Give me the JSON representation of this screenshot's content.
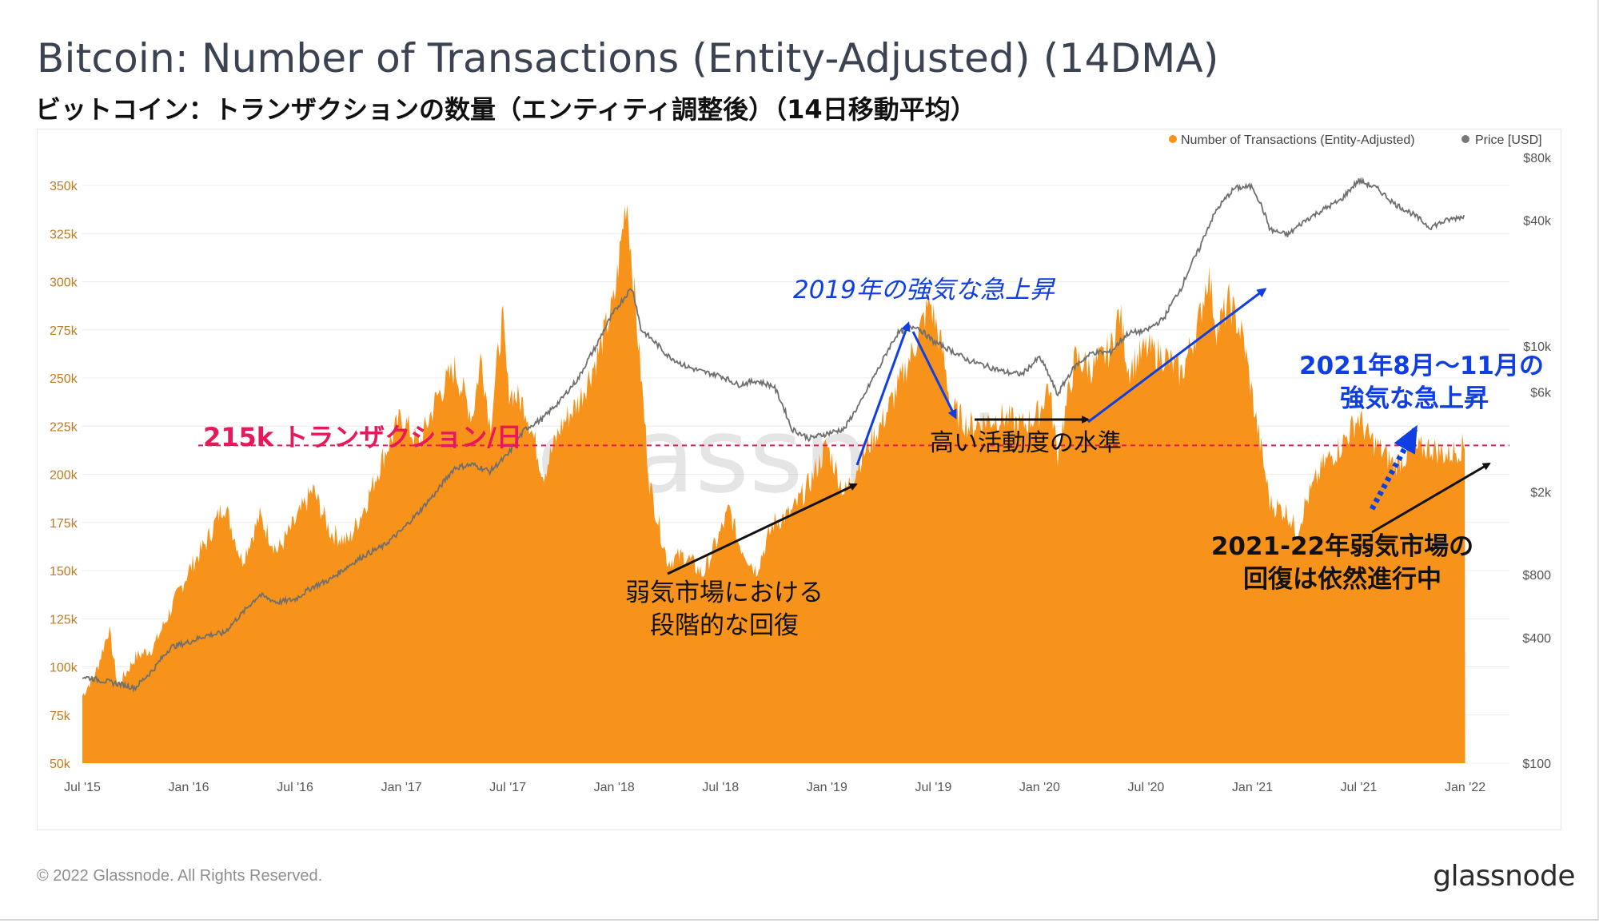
{
  "header": {
    "title": "Bitcoin: Number of Transactions (Entity-Adjusted) (14DMA)",
    "subtitle": "ビットコイン：トランザクションの数量（エンティティ調整後）（14日移動平均）"
  },
  "footer": {
    "copyright": "© 2022 Glassnode. All Rights Reserved.",
    "logo": "glassnode"
  },
  "watermark": "glassnode",
  "colors": {
    "transactions": "#f7931a",
    "price": "#777777",
    "threshold": "#e8185a",
    "blue_annotation": "#0f3fe3",
    "black_annotation": "#111111"
  },
  "chart_data": {
    "type": "area",
    "title": "Bitcoin: Number of Transactions (Entity-Adjusted) (14DMA)",
    "x_ticks": [
      "Jul '15",
      "Jan '16",
      "Jul '16",
      "Jan '17",
      "Jul '17",
      "Jan '18",
      "Jul '18",
      "Jan '19",
      "Jul '19",
      "Jan '20",
      "Jul '20",
      "Jan '21",
      "Jul '21",
      "Jan '22"
    ],
    "x_range_months": [
      0,
      80.5
    ],
    "y_left": {
      "label": "",
      "ticks": [
        "50k",
        "75k",
        "100k",
        "125k",
        "150k",
        "175k",
        "200k",
        "225k",
        "250k",
        "275k",
        "300k",
        "325k",
        "350k"
      ],
      "min": 50000,
      "max": 350000
    },
    "y_right": {
      "label": "Price [USD]",
      "scale": "log",
      "ticks": [
        "$100",
        "$400",
        "$800",
        "$2k",
        "$6k",
        "$10k",
        "$40k",
        "$80k"
      ],
      "values": [
        100,
        400,
        800,
        2000,
        6000,
        10000,
        40000,
        80000
      ]
    },
    "legend": [
      {
        "name": "Number of Transactions (Entity-Adjusted)",
        "color": "#f7931a"
      },
      {
        "name": "Price [USD]",
        "color": "#777777"
      }
    ],
    "legend_position": "top-right",
    "series": [
      {
        "name": "Number of Transactions (Entity-Adjusted)",
        "axis": "left",
        "points": [
          [
            0,
            85000
          ],
          [
            0.8,
            98000
          ],
          [
            1.5,
            120000
          ],
          [
            2,
            90000
          ],
          [
            3,
            105000
          ],
          [
            4,
            110000
          ],
          [
            5,
            130000
          ],
          [
            6,
            150000
          ],
          [
            7,
            165000
          ],
          [
            8,
            185000
          ],
          [
            9,
            155000
          ],
          [
            10,
            178000
          ],
          [
            11,
            160000
          ],
          [
            12,
            175000
          ],
          [
            13,
            192000
          ],
          [
            14,
            170000
          ],
          [
            15,
            165000
          ],
          [
            16,
            185000
          ],
          [
            17,
            210000
          ],
          [
            18,
            230000
          ],
          [
            19,
            215000
          ],
          [
            20,
            240000
          ],
          [
            21,
            255000
          ],
          [
            22,
            230000
          ],
          [
            22.5,
            262000
          ],
          [
            23,
            225000
          ],
          [
            23.7,
            282000
          ],
          [
            24,
            245000
          ],
          [
            25,
            235000
          ],
          [
            26,
            200000
          ],
          [
            27,
            225000
          ],
          [
            28,
            238000
          ],
          [
            29,
            260000
          ],
          [
            30,
            290000
          ],
          [
            30.7,
            345000
          ],
          [
            31,
            310000
          ],
          [
            32,
            195000
          ],
          [
            33,
            155000
          ],
          [
            34,
            158000
          ],
          [
            35,
            148000
          ],
          [
            36,
            170000
          ],
          [
            36.5,
            182000
          ],
          [
            37,
            165000
          ],
          [
            38,
            150000
          ],
          [
            39,
            175000
          ],
          [
            40,
            180000
          ],
          [
            41,
            195000
          ],
          [
            42,
            215000
          ],
          [
            43,
            190000
          ],
          [
            44,
            210000
          ],
          [
            45,
            225000
          ],
          [
            46,
            245000
          ],
          [
            47,
            268000
          ],
          [
            47.8,
            290000
          ],
          [
            48.5,
            265000
          ],
          [
            49,
            235000
          ],
          [
            50,
            225000
          ],
          [
            51,
            228000
          ],
          [
            52,
            230000
          ],
          [
            53,
            225000
          ],
          [
            54,
            232000
          ],
          [
            54.5,
            248000
          ],
          [
            55,
            210000
          ],
          [
            56,
            260000
          ],
          [
            57,
            255000
          ],
          [
            58,
            265000
          ],
          [
            58.5,
            285000
          ],
          [
            59,
            255000
          ],
          [
            60,
            265000
          ],
          [
            61,
            262000
          ],
          [
            62,
            252000
          ],
          [
            63,
            280000
          ],
          [
            63.5,
            305000
          ],
          [
            64,
            275000
          ],
          [
            64.7,
            290000
          ],
          [
            65.5,
            270000
          ],
          [
            66,
            240000
          ],
          [
            67,
            185000
          ],
          [
            68,
            180000
          ],
          [
            68.5,
            170000
          ],
          [
            69,
            185000
          ],
          [
            70,
            205000
          ],
          [
            71,
            215000
          ],
          [
            72,
            230000
          ],
          [
            72.5,
            220000
          ],
          [
            73,
            215000
          ],
          [
            74,
            205000
          ],
          [
            75,
            212000
          ],
          [
            76,
            214000
          ],
          [
            77,
            210000
          ],
          [
            78,
            215000
          ]
        ]
      },
      {
        "name": "Price [USD]",
        "axis": "right",
        "points": [
          [
            0,
            260
          ],
          [
            2,
            240
          ],
          [
            3,
            230
          ],
          [
            4,
            280
          ],
          [
            5,
            360
          ],
          [
            6,
            380
          ],
          [
            7,
            410
          ],
          [
            8,
            420
          ],
          [
            9,
            520
          ],
          [
            10,
            640
          ],
          [
            11,
            590
          ],
          [
            12,
            610
          ],
          [
            13,
            700
          ],
          [
            14,
            760
          ],
          [
            15,
            880
          ],
          [
            16,
            1000
          ],
          [
            17,
            1100
          ],
          [
            18,
            1300
          ],
          [
            19,
            1600
          ],
          [
            20,
            2000
          ],
          [
            21,
            2600
          ],
          [
            22,
            2700
          ],
          [
            23,
            2500
          ],
          [
            24,
            3000
          ],
          [
            25,
            4000
          ],
          [
            26,
            4500
          ],
          [
            27,
            5500
          ],
          [
            28,
            7000
          ],
          [
            29,
            10000
          ],
          [
            30,
            14500
          ],
          [
            31,
            19000
          ],
          [
            31.5,
            12000
          ],
          [
            32,
            11000
          ],
          [
            33,
            9000
          ],
          [
            34,
            8000
          ],
          [
            35,
            7500
          ],
          [
            36,
            7200
          ],
          [
            37,
            6500
          ],
          [
            38,
            6800
          ],
          [
            39,
            6400
          ],
          [
            40,
            4000
          ],
          [
            41,
            3600
          ],
          [
            42,
            3800
          ],
          [
            43,
            4000
          ],
          [
            44,
            5500
          ],
          [
            45,
            8000
          ],
          [
            46,
            11500
          ],
          [
            47,
            12500
          ],
          [
            48,
            10500
          ],
          [
            49,
            9500
          ],
          [
            50,
            8500
          ],
          [
            51,
            8000
          ],
          [
            52,
            7500
          ],
          [
            53,
            7300
          ],
          [
            54,
            8800
          ],
          [
            55,
            5800
          ],
          [
            56,
            8000
          ],
          [
            57,
            9300
          ],
          [
            58,
            9300
          ],
          [
            59,
            11500
          ],
          [
            60,
            11800
          ],
          [
            61,
            13500
          ],
          [
            62,
            19000
          ],
          [
            63,
            29000
          ],
          [
            64,
            45000
          ],
          [
            65,
            57000
          ],
          [
            66,
            58000
          ],
          [
            67,
            36000
          ],
          [
            68,
            34000
          ],
          [
            69,
            40000
          ],
          [
            70,
            45000
          ],
          [
            71,
            50000
          ],
          [
            72,
            62000
          ],
          [
            73,
            57000
          ],
          [
            74,
            48000
          ],
          [
            75,
            43000
          ],
          [
            76,
            37000
          ],
          [
            77,
            40000
          ],
          [
            78,
            42000
          ]
        ]
      }
    ],
    "reference_line": {
      "value": 215000,
      "label": "215k トランザクション/日"
    },
    "annotations": [
      {
        "id": "gradual",
        "text": [
          "弱気市場における",
          "段階的な回復"
        ]
      },
      {
        "id": "surge2019",
        "text": [
          "2019年の強気な急上昇"
        ]
      },
      {
        "id": "high",
        "text": [
          "高い活動度の水準"
        ]
      },
      {
        "id": "surge2021",
        "text": [
          "2021年8月〜11月の",
          "強気な急上昇"
        ]
      },
      {
        "id": "bear2122",
        "text": [
          "2021-22年弱気市場の",
          "回復は依然進行中"
        ]
      }
    ]
  }
}
